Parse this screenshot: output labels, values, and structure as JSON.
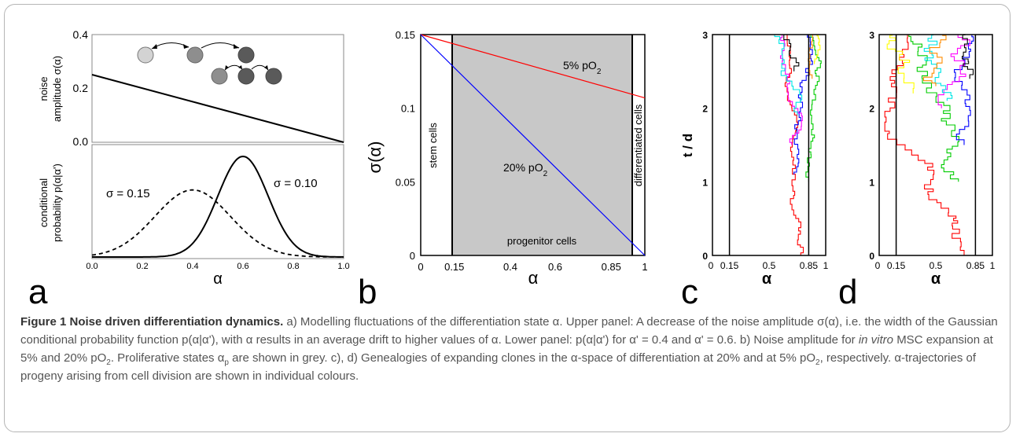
{
  "figure": {
    "panel_labels": [
      "a",
      "b",
      "c",
      "d"
    ],
    "panel_a": {
      "top": {
        "ylabel_line1": "noise",
        "ylabel_line2": "amplitude σ(α)",
        "yticks": [
          "0.4",
          "0.2",
          "0.0"
        ]
      },
      "bottom": {
        "ylabel_line1": "conditional",
        "ylabel_line2": "probability p(α|α')",
        "annotations": [
          "σ = 0.15",
          "σ = 0.10"
        ],
        "xticks": [
          "0.0",
          "0.2",
          "0.4",
          "0.6",
          "0.8",
          "1.0"
        ],
        "xlabel": "α"
      },
      "cell_colors": [
        "#d3d3d3",
        "#8e8e8e",
        "#5a5a5a"
      ]
    },
    "panel_b": {
      "ylabel": "σ(α)",
      "xlabel": "α",
      "yticks": [
        "0.15",
        "0.1",
        "0.05",
        "0"
      ],
      "xticks": [
        "0",
        "0.15",
        "0.4",
        "0.6",
        "0.85",
        "1"
      ],
      "region_labels": [
        "stem cells",
        "progenitor cells",
        "differentiated cells"
      ],
      "line_labels": [
        "5% pO",
        "20% pO"
      ],
      "line_label_sub": "2",
      "shade_color": "#c8c8c8",
      "line_colors": [
        "#ff0000",
        "#0000ff"
      ]
    },
    "panel_c": {
      "ylabel": "t / d",
      "xlabel": "α",
      "yticks": [
        "3",
        "2",
        "1",
        "0"
      ],
      "xticks": [
        "0",
        "0.15",
        "0.5",
        "0.85",
        "1"
      ]
    },
    "panel_d": {
      "ylabel": "t / d",
      "xlabel": "α",
      "yticks": [
        "3",
        "2",
        "1",
        "0"
      ],
      "xticks": [
        "0",
        "0.15",
        "0.5",
        "0.85",
        "1"
      ]
    }
  },
  "chart_data": [
    {
      "type": "line",
      "panel": "a-top",
      "series": [
        {
          "x": [
            0,
            1
          ],
          "values": [
            0.25,
            0.0
          ]
        }
      ],
      "xlim": [
        0,
        1
      ],
      "ylim": [
        0,
        0.4
      ]
    },
    {
      "type": "line",
      "panel": "a-bottom",
      "series": [
        {
          "label": "σ = 0.15",
          "mean": 0.4,
          "sigma": 0.15,
          "style": "dashed"
        },
        {
          "label": "σ = 0.10",
          "mean": 0.6,
          "sigma": 0.1,
          "style": "solid"
        }
      ],
      "xlim": [
        0,
        1
      ],
      "xlabel": "α"
    },
    {
      "type": "line",
      "panel": "b",
      "series": [
        {
          "name": "5% pO2",
          "x": [
            0,
            1
          ],
          "values": [
            0.15,
            0.107
          ]
        },
        {
          "name": "20% pO2",
          "x": [
            0,
            1
          ],
          "values": [
            0.15,
            0.0
          ]
        }
      ],
      "shaded_region": [
        0.15,
        0.85
      ],
      "xlim": [
        0,
        1
      ],
      "ylim": [
        0,
        0.15
      ],
      "xlabel": "α",
      "ylabel": "σ(α)"
    },
    {
      "type": "line",
      "panel": "c",
      "xlim": [
        0,
        1
      ],
      "ylim": [
        0,
        3
      ],
      "vertical_lines": [
        0.15,
        0.85
      ],
      "xlabel": "α",
      "ylabel": "t / d",
      "lineage_colors": [
        "#ff0000",
        "#00cc00",
        "#0000ff",
        "#ff00ff",
        "#00e5e5",
        "#000000",
        "#ffff00",
        "#ff8c00"
      ]
    },
    {
      "type": "line",
      "panel": "d",
      "xlim": [
        0,
        1
      ],
      "ylim": [
        0,
        3
      ],
      "vertical_lines": [
        0.15,
        0.85
      ],
      "xlabel": "α",
      "ylabel": "t / d",
      "lineage_colors": [
        "#ff0000",
        "#00cc00",
        "#0000ff",
        "#ff00ff",
        "#00e5e5",
        "#000000",
        "#ffff00",
        "#ff8c00"
      ]
    }
  ],
  "caption": {
    "title": "Figure 1 Noise driven differentiation dynamics.",
    "p1": "a) Modelling fluctuations of the differentiation state α. Upper panel: A decrease of the noise amplitude σ(α), i.e. the width of the Gaussian conditional probability function p(α|α'), with α results in an average drift to higher values of α. Lower panel: p(α|α') for α' = 0.4 and α' = 0.6. b) Noise amplitude for",
    "p1_em": "in vitro",
    "p2": "MSC expansion at 5% and 20% pO",
    "p2_sub": "2",
    "p3": ". Proliferative states α",
    "p3_sub": "p",
    "p4": "are shown in grey. c), d) Genealogies of expanding clones in the α-space of differentiation at 20% and at 5% pO",
    "p4_sub": "2",
    "p5": ", respectively. α-trajectories of progeny arising from cell division are shown in individual colours."
  }
}
